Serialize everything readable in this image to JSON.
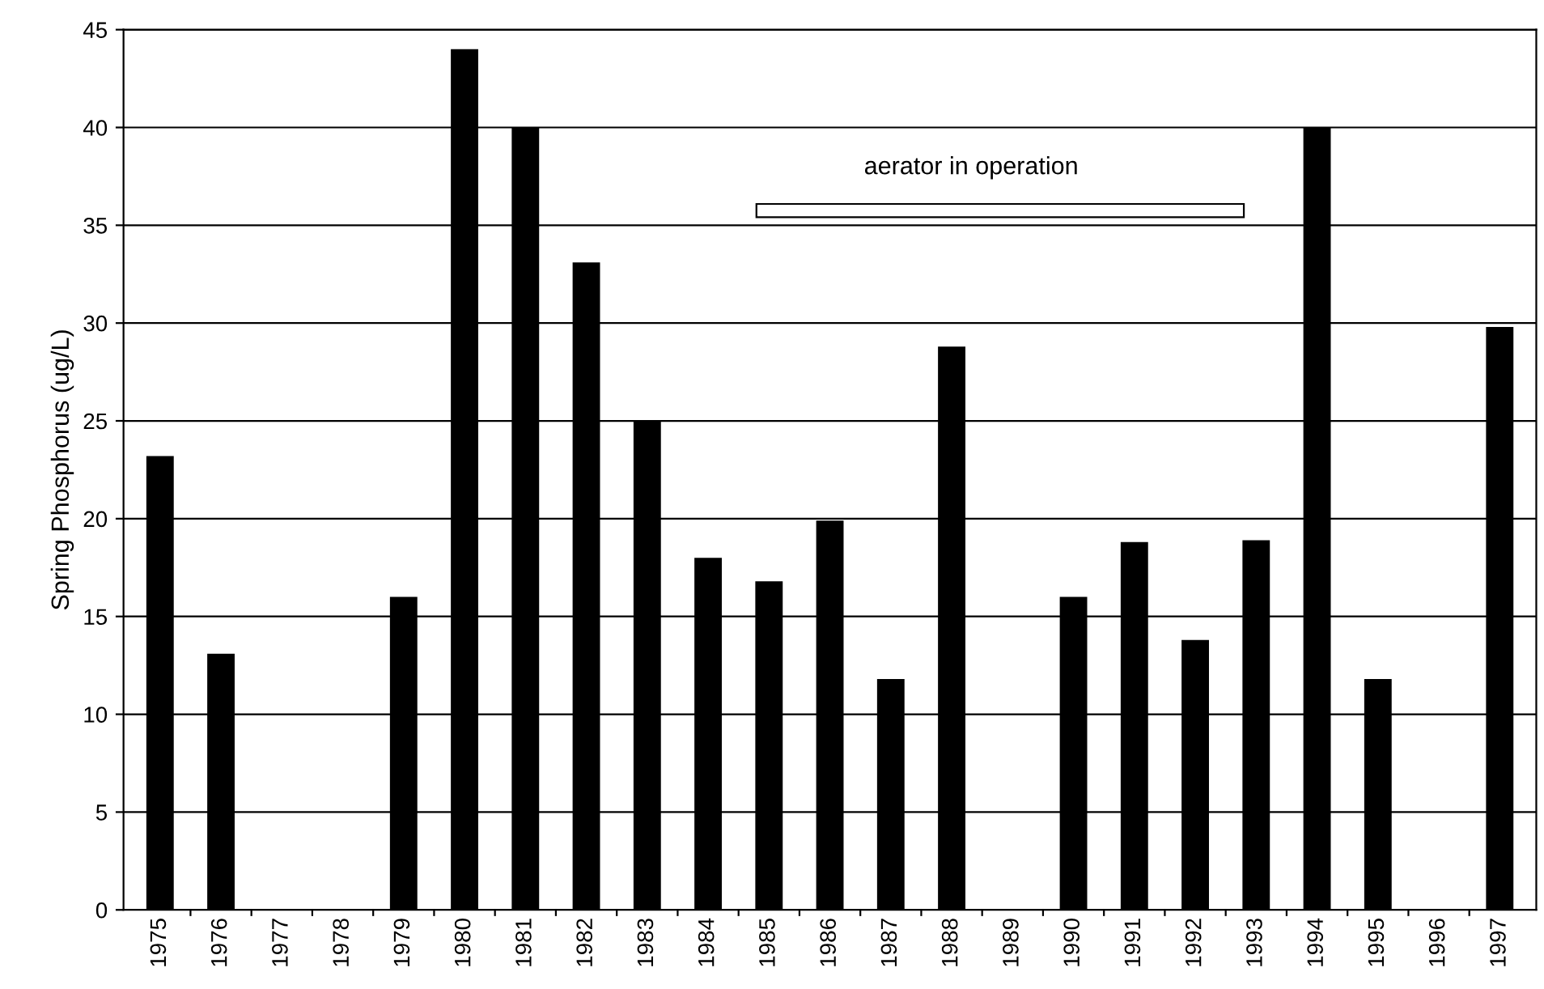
{
  "chart_data": {
    "type": "bar",
    "ylabel": "Spring Phosphorus (ug/L)",
    "categories": [
      "1975",
      "1976",
      "1977",
      "1978",
      "1979",
      "1980",
      "1981",
      "1982",
      "1983",
      "1984",
      "1985",
      "1986",
      "1987",
      "1988",
      "1989",
      "1990",
      "1991",
      "1992",
      "1993",
      "1994",
      "1995",
      "1996",
      "1997"
    ],
    "values": [
      23.2,
      13.1,
      null,
      null,
      16,
      44,
      40,
      33.1,
      25,
      18,
      16.8,
      19.9,
      11.8,
      28.8,
      null,
      16,
      18.8,
      13.8,
      18.9,
      40,
      11.8,
      null,
      29.8
    ],
    "color": "#000000",
    "ylim": [
      0,
      45
    ],
    "yticks": [
      0,
      5,
      10,
      15,
      20,
      25,
      30,
      35,
      40,
      45
    ],
    "grid": "y",
    "annotations": [
      "aerator in operation"
    ]
  }
}
